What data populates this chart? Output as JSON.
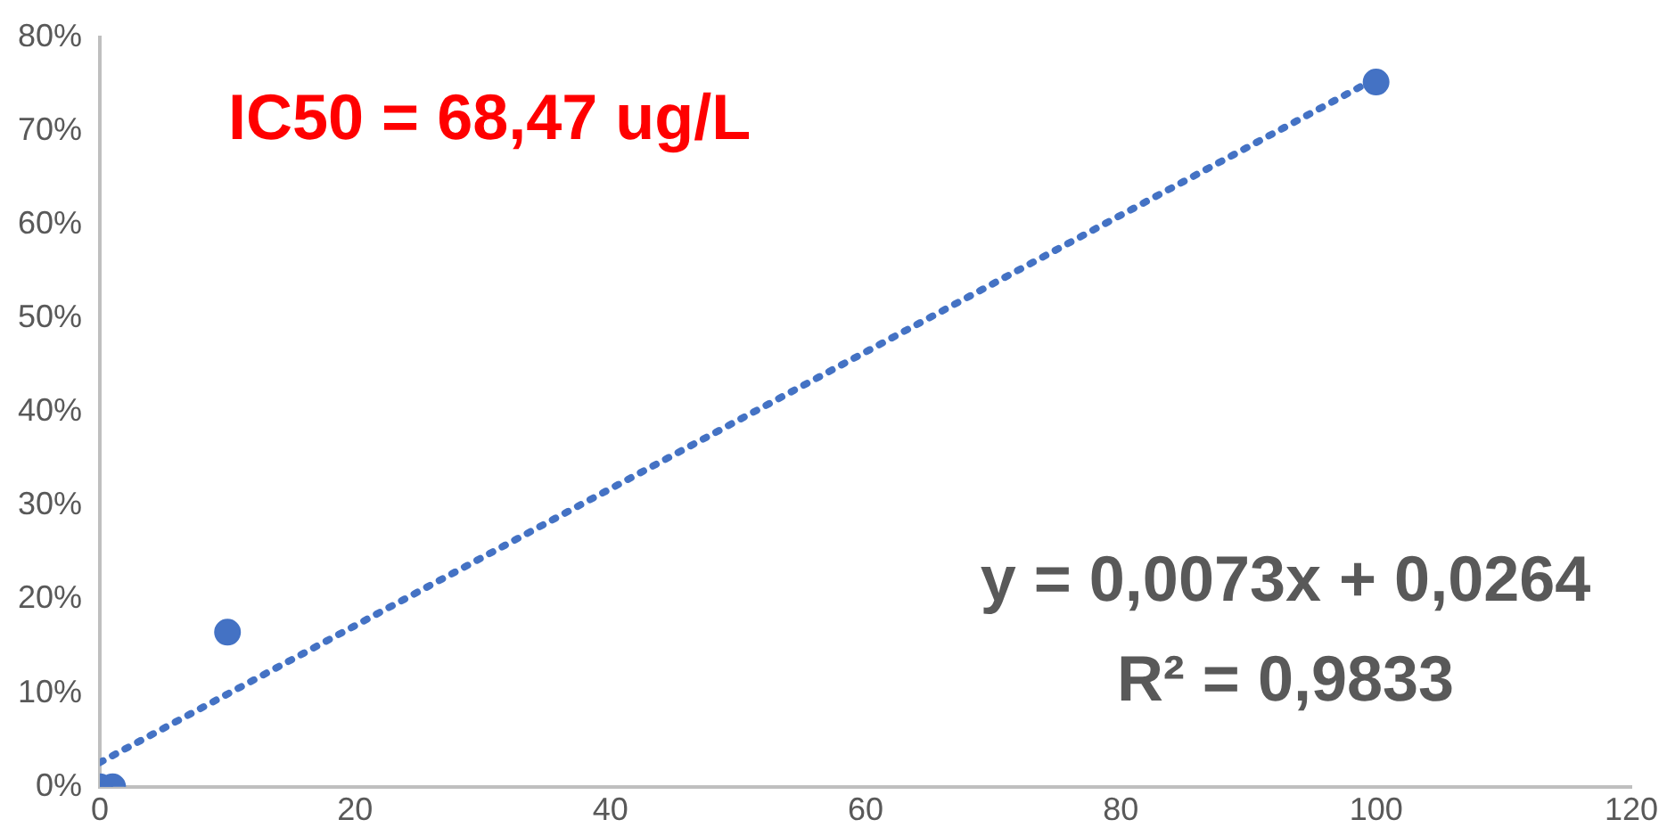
{
  "chart_data": {
    "type": "scatter",
    "series": [
      {
        "color": "#4472c4",
        "x": [
          0,
          1,
          10,
          100
        ],
        "values": [
          0,
          0,
          16.5,
          75.2
        ],
        "marker": "circle"
      },
      {
        "type": "line",
        "color": "#4472c4",
        "x": [
          0,
          100
        ],
        "values": [
          2.6,
          75.6
        ],
        "marker": "none",
        "line_style": "dotted"
      }
    ],
    "xlim": [
      0,
      120
    ],
    "xticks": [
      0,
      20,
      40,
      60,
      80,
      100,
      120
    ],
    "ylim": [
      0,
      80
    ],
    "yticks": [
      {
        "value": 0,
        "label": "0%"
      },
      {
        "value": 10,
        "label": "10%"
      },
      {
        "value": 20,
        "label": "20%"
      },
      {
        "value": 30,
        "label": "30%"
      },
      {
        "value": 40,
        "label": "40%"
      },
      {
        "value": 50,
        "label": "50%"
      },
      {
        "value": 60,
        "label": "60%"
      },
      {
        "value": 70,
        "label": "70%"
      },
      {
        "value": 80,
        "label": "80%"
      }
    ],
    "grid": false,
    "legend": false,
    "annotations": [
      "IC50 = 68,47 ug/L",
      "y = 0,0073x + 0,0264",
      "R² = 0,9833"
    ]
  }
}
